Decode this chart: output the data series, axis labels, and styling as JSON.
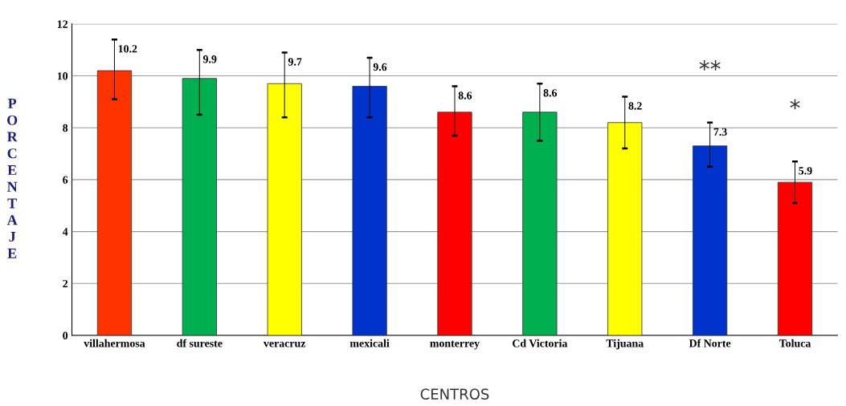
{
  "chart_data": {
    "type": "bar",
    "categories": [
      "villahermosa",
      "df sureste",
      "veracruz",
      "mexicali",
      "monterrey",
      "Cd Victoria",
      "Tijuana",
      "Df Norte",
      "Toluca"
    ],
    "values": [
      10.2,
      9.9,
      9.7,
      9.6,
      8.6,
      8.6,
      8.2,
      7.3,
      5.9
    ],
    "colors": [
      "#ff3300",
      "#00b050",
      "#ffff00",
      "#0033cc",
      "#ff0000",
      "#00b050",
      "#ffff00",
      "#0033cc",
      "#ff0000"
    ],
    "errors": [
      [
        9.1,
        11.4
      ],
      [
        8.5,
        11.0
      ],
      [
        8.4,
        10.9
      ],
      [
        8.4,
        10.7
      ],
      [
        7.7,
        9.6
      ],
      [
        7.5,
        9.7
      ],
      [
        7.2,
        9.2
      ],
      [
        6.5,
        8.2
      ],
      [
        5.1,
        6.7
      ]
    ],
    "data_labels": true,
    "ylabel": "PORCENTAJE",
    "xlabel": "CENTROS",
    "ylim": [
      0,
      12
    ],
    "yticks": [
      0,
      2,
      4,
      6,
      8,
      10,
      12
    ],
    "grid": "y",
    "annotations": [
      "**",
      "*"
    ]
  }
}
